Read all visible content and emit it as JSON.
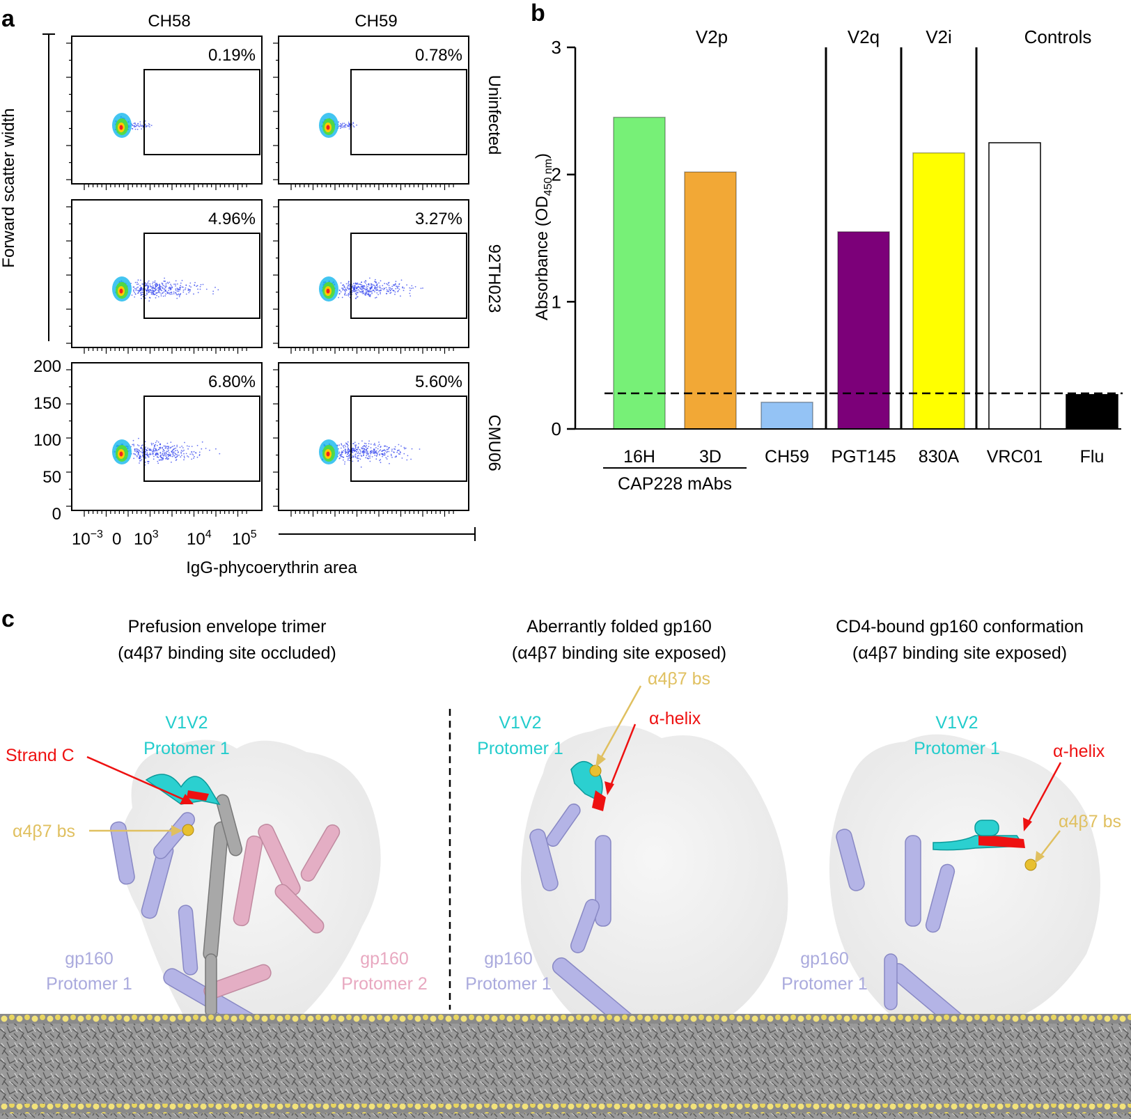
{
  "figure": {
    "panel_labels": [
      "a",
      "b",
      "c"
    ]
  },
  "panel_a": {
    "columns": [
      "CH58",
      "CH59"
    ],
    "rows": [
      "Uninfected",
      "92TH023",
      "CMU06"
    ],
    "percentages": [
      [
        "0.19%",
        "0.78%"
      ],
      [
        "4.96%",
        "3.27%"
      ],
      [
        "6.80%",
        "5.60%"
      ]
    ],
    "ylabel": "Forward scatter width",
    "xlabel": "IgG-phycoerythrin area",
    "y_ticks": [
      "200",
      "150",
      "100",
      "50",
      "0"
    ],
    "x_ticks": [
      {
        "base": "10",
        "exp": "−3"
      },
      {
        "base": "0",
        "exp": ""
      },
      {
        "base": "10",
        "exp": "3"
      },
      {
        "base": "10",
        "exp": "4"
      },
      {
        "base": "10",
        "exp": "5"
      }
    ]
  },
  "chart_data": {
    "type": "bar",
    "ylabel_main": "Absorbance (OD",
    "ylabel_sub": "450 nm",
    "ylabel_close": ")",
    "ylim": [
      0,
      3
    ],
    "y_ticks": [
      0,
      1,
      2,
      3
    ],
    "threshold": 0.28,
    "groups": [
      "V2p",
      "V2q",
      "V2i",
      "Controls"
    ],
    "group_sublabel": "CAP228 mAbs",
    "categories": [
      "16H",
      "3D",
      "CH59",
      "PGT145",
      "830A",
      "VRC01",
      "Flu"
    ],
    "values": [
      2.45,
      2.02,
      0.21,
      1.55,
      2.17,
      2.25,
      0.27
    ],
    "colors": {
      "16H": "#77f077",
      "3D": "#f2a836",
      "CH59": "#94c3f5",
      "PGT145": "#7c0079",
      "830A": "#ffff00",
      "VRC01": "#ffffff",
      "Flu": "#000000"
    }
  },
  "panel_c": {
    "titles": [
      {
        "line1": "Prefusion envelope trimer",
        "line2": "(α4β7 binding site occluded)"
      },
      {
        "line1": "Aberrantly folded gp160",
        "line2": "(α4β7 binding site exposed)"
      },
      {
        "line1": "CD4-bound gp160 conformation",
        "line2": "(α4β7 binding site exposed)"
      }
    ],
    "labels": {
      "v1v2": "V1V2",
      "protomer1": "Protomer 1",
      "protomer2": "Protomer 2",
      "gp160": "gp160",
      "strand_c": "Strand C",
      "a4b7_bs": "α4β7 bs",
      "alpha_helix": "α-helix"
    },
    "colors": {
      "cyan": "#22cccc",
      "red": "#ee1111",
      "gold": "#e0c060",
      "lavender": "#aaaadd",
      "pink": "#e8a8c0",
      "gray": "#999999"
    }
  }
}
